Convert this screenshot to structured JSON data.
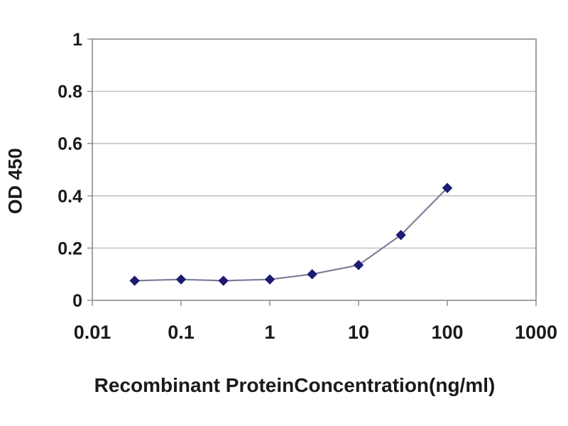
{
  "chart_data": {
    "type": "line",
    "title": "",
    "xlabel": "Recombinant ProteinConcentration(ng/ml)",
    "ylabel": "OD 450",
    "xscale": "log",
    "xlim": [
      0.01,
      1000
    ],
    "ylim": [
      0,
      1
    ],
    "x_ticks": [
      0.01,
      0.1,
      1,
      10,
      100,
      1000
    ],
    "x_tick_labels": [
      "0.01",
      "0.1",
      "1",
      "10",
      "100",
      "1000"
    ],
    "y_ticks": [
      0,
      0.2,
      0.4,
      0.6,
      0.8,
      1
    ],
    "y_tick_labels": [
      "0",
      "0.2",
      "0.4",
      "0.6",
      "0.8",
      "1"
    ],
    "grid": true,
    "legend": false,
    "series": [
      {
        "name": "OD 450",
        "x": [
          0.03,
          0.1,
          0.3,
          1,
          3,
          10,
          30,
          100
        ],
        "y": [
          0.075,
          0.08,
          0.075,
          0.08,
          0.1,
          0.135,
          0.25,
          0.43
        ],
        "marker": "diamond",
        "marker_color": "#1c1c70",
        "line_color": "#7d7d99"
      }
    ],
    "colors": {
      "grid": "#b8b8b8",
      "axis": "#8a8a8a",
      "text": "#1a1a1a",
      "background": "#ffffff"
    }
  }
}
